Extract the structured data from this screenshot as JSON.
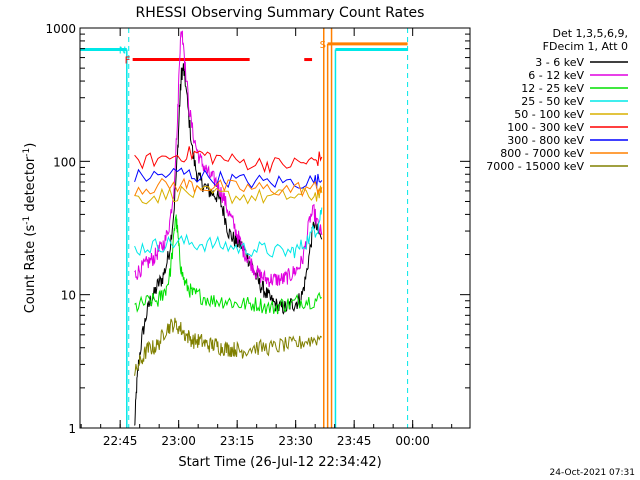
{
  "chart_data": {
    "type": "line",
    "title": "RHESSI Observing Summary Count Rates",
    "xlabel": "Start Time (26-Jul-12 22:34:42)",
    "ylabel_main": "Count Rate (s",
    "ylabel_sup1": "-1",
    "ylabel_mid": " detector",
    "ylabel_sup2": "-1",
    "ylabel_end": ")",
    "y_scale": "log",
    "ylim": [
      1,
      1000
    ],
    "xlim_minutes": [
      0,
      100
    ],
    "x_ticks": [
      {
        "label": "22:45",
        "minute": 10.3
      },
      {
        "label": "23:00",
        "minute": 25.3
      },
      {
        "label": "23:15",
        "minute": 40.3
      },
      {
        "label": "23:30",
        "minute": 55.3
      },
      {
        "label": "23:45",
        "minute": 70.3
      },
      {
        "label": "00:00",
        "minute": 85.3
      }
    ],
    "y_ticks": [
      {
        "label": "1",
        "value": 1
      },
      {
        "label": "10",
        "value": 10
      },
      {
        "label": "100",
        "value": 100
      },
      {
        "label": "1000",
        "value": 1000
      }
    ],
    "legend_header": [
      "Det 1,3,5,6,9,",
      "FDecim 1, Att 0"
    ],
    "series": [
      {
        "name": "3 - 6 keV",
        "color": "#000000",
        "points": [
          [
            14,
            1
          ],
          [
            14.5,
            2
          ],
          [
            15,
            3
          ],
          [
            16,
            5
          ],
          [
            17,
            7
          ],
          [
            18,
            9
          ],
          [
            19,
            10
          ],
          [
            20,
            12
          ],
          [
            21,
            13
          ],
          [
            22,
            16
          ],
          [
            23,
            22
          ],
          [
            24,
            40
          ],
          [
            25,
            110
          ],
          [
            25.5,
            250
          ],
          [
            26,
            450
          ],
          [
            26.5,
            500
          ],
          [
            27,
            400
          ],
          [
            28,
            200
          ],
          [
            29,
            110
          ],
          [
            30,
            80
          ],
          [
            31,
            70
          ],
          [
            32,
            65
          ],
          [
            33,
            60
          ],
          [
            34,
            58
          ],
          [
            35,
            55
          ],
          [
            36,
            50
          ],
          [
            37,
            40
          ],
          [
            38,
            30
          ],
          [
            39,
            27
          ],
          [
            40,
            25
          ],
          [
            41,
            24
          ],
          [
            42,
            22
          ],
          [
            43,
            19
          ],
          [
            44,
            17
          ],
          [
            45,
            14
          ],
          [
            46,
            12
          ],
          [
            47,
            11
          ],
          [
            48,
            10
          ],
          [
            49,
            9
          ],
          [
            50,
            8.5
          ],
          [
            51,
            8
          ],
          [
            52,
            8
          ],
          [
            53,
            8
          ],
          [
            54,
            8.5
          ],
          [
            55,
            8.5
          ],
          [
            56,
            9
          ],
          [
            57,
            10
          ],
          [
            58,
            14
          ],
          [
            59,
            22
          ],
          [
            60,
            35
          ],
          [
            61,
            30
          ],
          [
            62,
            26
          ]
        ]
      },
      {
        "name": "6 - 12 keV",
        "color": "#e000e0",
        "points": [
          [
            14,
            14
          ],
          [
            15,
            15
          ],
          [
            16,
            16
          ],
          [
            17,
            17
          ],
          [
            18,
            18
          ],
          [
            19,
            19
          ],
          [
            20,
            21
          ],
          [
            21,
            23
          ],
          [
            22,
            26
          ],
          [
            23,
            35
          ],
          [
            24,
            60
          ],
          [
            25,
            200
          ],
          [
            25.5,
            600
          ],
          [
            26,
            980
          ],
          [
            26.5,
            800
          ],
          [
            27,
            500
          ],
          [
            28,
            250
          ],
          [
            29,
            160
          ],
          [
            30,
            120
          ],
          [
            31,
            100
          ],
          [
            32,
            90
          ],
          [
            33,
            80
          ],
          [
            34,
            75
          ],
          [
            35,
            70
          ],
          [
            36,
            60
          ],
          [
            37,
            52
          ],
          [
            38,
            42
          ],
          [
            39,
            36
          ],
          [
            40,
            30
          ],
          [
            41,
            25
          ],
          [
            42,
            21
          ],
          [
            43,
            19
          ],
          [
            44,
            17
          ],
          [
            45,
            15
          ],
          [
            46,
            14
          ],
          [
            47,
            13.5
          ],
          [
            48,
            13
          ],
          [
            49,
            13
          ],
          [
            50,
            13
          ],
          [
            51,
            13
          ],
          [
            52,
            13
          ],
          [
            53,
            13.5
          ],
          [
            54,
            14
          ],
          [
            55,
            15
          ],
          [
            56,
            16
          ],
          [
            57,
            18
          ],
          [
            58,
            25
          ],
          [
            59,
            38
          ],
          [
            60,
            42
          ],
          [
            61,
            33
          ],
          [
            62,
            28
          ]
        ]
      },
      {
        "name": "12 - 25 keV",
        "color": "#00e000",
        "points": [
          [
            14,
            8
          ],
          [
            16,
            8.5
          ],
          [
            18,
            9
          ],
          [
            20,
            9
          ],
          [
            21,
            10
          ],
          [
            22,
            11
          ],
          [
            23,
            14
          ],
          [
            24,
            25
          ],
          [
            24.5,
            40
          ],
          [
            25,
            30
          ],
          [
            25.5,
            20
          ],
          [
            26,
            15
          ],
          [
            27,
            12
          ],
          [
            28,
            11
          ],
          [
            29,
            10
          ],
          [
            30,
            10
          ],
          [
            32,
            9.5
          ],
          [
            34,
            9
          ],
          [
            36,
            9
          ],
          [
            38,
            9
          ],
          [
            40,
            8.5
          ],
          [
            42,
            8.5
          ],
          [
            44,
            8.5
          ],
          [
            46,
            8.5
          ],
          [
            48,
            8
          ],
          [
            50,
            8
          ],
          [
            52,
            8.5
          ],
          [
            54,
            8.5
          ],
          [
            56,
            9
          ],
          [
            58,
            9
          ],
          [
            60,
            9
          ],
          [
            62,
            9.5
          ]
        ]
      },
      {
        "name": "25 - 50 keV",
        "color": "#00e8e8",
        "points": [
          [
            14,
            22
          ],
          [
            18,
            23
          ],
          [
            22,
            24
          ],
          [
            26,
            25
          ],
          [
            30,
            24
          ],
          [
            34,
            24
          ],
          [
            38,
            23
          ],
          [
            42,
            22
          ],
          [
            46,
            22
          ],
          [
            50,
            21
          ],
          [
            54,
            21
          ],
          [
            56,
            22
          ],
          [
            58,
            25
          ],
          [
            60,
            30
          ],
          [
            61,
            32
          ],
          [
            62,
            45
          ]
        ]
      },
      {
        "name": "50 - 100 keV",
        "color": "#d8b000",
        "points": [
          [
            14,
            53
          ],
          [
            20,
            55
          ],
          [
            26,
            58
          ],
          [
            32,
            57
          ],
          [
            38,
            55
          ],
          [
            44,
            54
          ],
          [
            50,
            54
          ],
          [
            56,
            55
          ],
          [
            60,
            56
          ],
          [
            62,
            58
          ]
        ]
      },
      {
        "name": "100 - 300 keV",
        "color": "#ff0000",
        "points": [
          [
            14,
            98
          ],
          [
            20,
            104
          ],
          [
            26,
            112
          ],
          [
            30,
            115
          ],
          [
            34,
            108
          ],
          [
            40,
            100
          ],
          [
            46,
            96
          ],
          [
            50,
            95
          ],
          [
            56,
            96
          ],
          [
            60,
            100
          ],
          [
            62,
            108
          ]
        ]
      },
      {
        "name": "300 - 800 keV",
        "color": "#0000ff",
        "points": [
          [
            14,
            76
          ],
          [
            20,
            78
          ],
          [
            26,
            82
          ],
          [
            30,
            78
          ],
          [
            36,
            74
          ],
          [
            42,
            71
          ],
          [
            48,
            70
          ],
          [
            54,
            70
          ],
          [
            60,
            71
          ],
          [
            62,
            72
          ]
        ]
      },
      {
        "name": "800 - 7000 keV",
        "color": "#ff8000",
        "points": [
          [
            14,
            63
          ],
          [
            20,
            65
          ],
          [
            26,
            67
          ],
          [
            30,
            66
          ],
          [
            36,
            64
          ],
          [
            42,
            63
          ],
          [
            48,
            62
          ],
          [
            54,
            62
          ],
          [
            60,
            63
          ],
          [
            62,
            64
          ]
        ]
      },
      {
        "name": "7000 - 15000 keV",
        "color": "#808000",
        "points": [
          [
            14,
            2.5
          ],
          [
            15,
            3
          ],
          [
            16,
            3.3
          ],
          [
            17,
            3.8
          ],
          [
            18,
            4
          ],
          [
            19,
            4
          ],
          [
            20,
            4.2
          ],
          [
            21,
            4.8
          ],
          [
            22,
            5.5
          ],
          [
            23,
            5.8
          ],
          [
            24,
            6
          ],
          [
            25,
            5.8
          ],
          [
            26,
            5.5
          ],
          [
            27,
            5
          ],
          [
            28,
            4.8
          ],
          [
            29,
            4.5
          ],
          [
            30,
            4.5
          ],
          [
            31,
            4.5
          ],
          [
            32,
            4.3
          ],
          [
            33,
            4.2
          ],
          [
            34,
            4.2
          ],
          [
            35,
            4.2
          ],
          [
            36,
            4
          ],
          [
            37,
            4
          ],
          [
            38,
            3.9
          ],
          [
            39,
            3.9
          ],
          [
            40,
            3.9
          ],
          [
            41,
            3.8
          ],
          [
            42,
            3.8
          ],
          [
            44,
            4
          ],
          [
            46,
            4
          ],
          [
            48,
            4
          ],
          [
            50,
            4
          ],
          [
            52,
            4.2
          ],
          [
            54,
            4.2
          ],
          [
            56,
            4.3
          ],
          [
            58,
            4.5
          ],
          [
            60,
            4.6
          ],
          [
            62,
            4.8
          ]
        ]
      }
    ],
    "flags": [
      {
        "code": "N",
        "color": "#00e8e8",
        "segments": [
          [
            -1,
            12
          ],
          [
            65.5,
            84
          ]
        ],
        "level": 690,
        "vlines": [
          12,
          65.5
        ]
      },
      {
        "code": "F",
        "color": "#ff0000",
        "segments": [
          [
            13.5,
            43.5
          ],
          [
            57.5,
            59.5
          ]
        ],
        "level": 580
      },
      {
        "code": "S",
        "color": "#ff8000",
        "segments": [
          [
            63.5,
            84
          ]
        ],
        "level": 760,
        "vlines": [
          63.5
        ]
      }
    ],
    "dashed_vlines": [
      {
        "minute": 12.5,
        "color": "#00e8e8"
      },
      {
        "minute": 84,
        "color": "#00e8e8"
      }
    ],
    "solid_vlines": [
      {
        "minute": 62.5,
        "color": "#ff8000"
      },
      {
        "minute": 64.5,
        "color": "#ff8000"
      }
    ],
    "footer_date": "24-Oct-2021 07:31"
  }
}
